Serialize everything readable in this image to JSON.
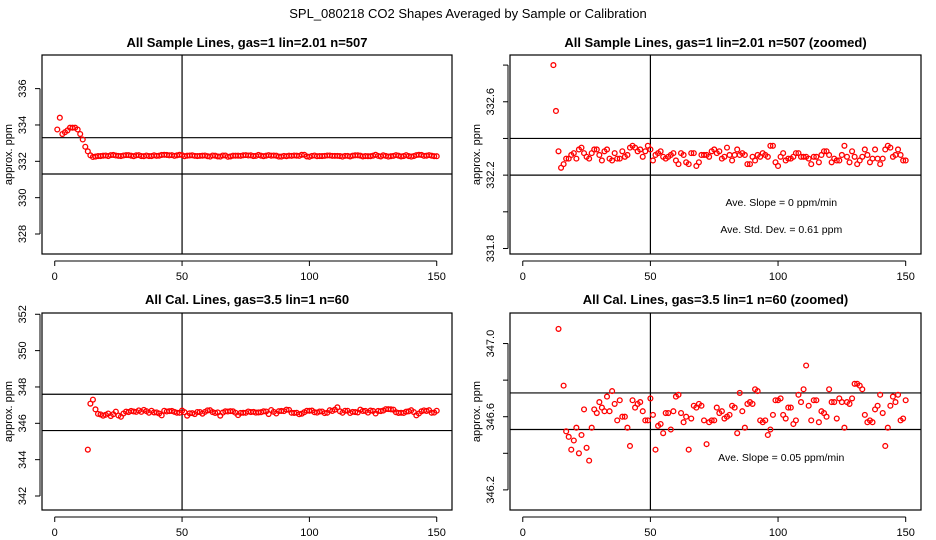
{
  "main_title": "SPL_080218  CO2 Shapes Averaged by Sample or Calibration",
  "colors": {
    "points": "#ff0000",
    "lines": "#000000"
  },
  "datasets": {
    "sample": {
      "x_start": 1,
      "values": [
        333.75,
        334.4,
        333.5,
        333.6,
        333.7,
        333.85,
        333.85,
        333.85,
        333.75,
        333.5,
        333.2,
        332.8,
        332.55,
        332.33,
        332.24,
        332.26,
        332.29,
        332.29,
        332.31,
        332.32,
        332.29,
        332.34,
        332.35,
        332.32,
        332.3,
        332.29,
        332.32,
        332.34,
        332.34,
        332.31,
        332.28,
        332.33,
        332.34,
        332.29,
        332.28,
        332.32,
        332.29,
        332.29,
        332.33,
        332.3,
        332.31,
        332.35,
        332.36,
        332.35,
        332.33,
        332.34,
        332.3,
        332.33,
        332.36,
        332.34,
        332.28,
        332.31,
        332.32,
        332.33,
        332.3,
        332.29,
        332.3,
        332.31,
        332.32,
        332.28,
        332.26,
        332.32,
        332.31,
        332.27,
        332.26,
        332.32,
        332.32,
        332.25,
        332.27,
        332.31,
        332.31,
        332.31,
        332.3,
        332.33,
        332.34,
        332.32,
        332.33,
        332.29,
        332.3,
        332.35,
        332.31,
        332.28,
        332.31,
        332.34,
        332.31,
        332.32,
        332.31,
        332.26,
        332.26,
        332.3,
        332.28,
        332.31,
        332.3,
        332.32,
        332.31,
        332.3,
        332.36,
        332.36,
        332.27,
        332.25,
        332.3,
        332.32,
        332.28,
        332.29,
        332.29,
        332.3,
        332.32,
        332.32,
        332.3,
        332.3,
        332.3,
        332.29,
        332.26,
        332.3,
        332.3,
        332.27,
        332.31,
        332.33,
        332.33,
        332.31,
        332.27,
        332.29,
        332.28,
        332.28,
        332.31,
        332.36,
        332.3,
        332.27,
        332.33,
        332.3,
        332.26,
        332.28,
        332.3,
        332.34,
        332.31,
        332.27,
        332.29,
        332.34,
        332.29,
        332.26,
        332.29,
        332.34,
        332.36,
        332.35,
        332.3,
        332.31,
        332.34,
        332.31,
        332.28,
        332.28
      ]
    },
    "calibration": {
      "x_start": 13,
      "values": [
        344.55,
        347.08,
        347.3,
        346.77,
        346.52,
        346.49,
        346.42,
        346.47,
        346.54,
        346.4,
        346.5,
        346.64,
        346.43,
        346.36,
        346.54,
        346.64,
        346.62,
        346.68,
        346.65,
        346.63,
        346.71,
        346.63,
        346.74,
        346.67,
        346.58,
        346.69,
        346.6,
        346.6,
        346.54,
        346.44,
        346.69,
        346.65,
        346.67,
        346.68,
        346.63,
        346.58,
        346.58,
        346.7,
        346.61,
        346.42,
        346.55,
        346.56,
        346.51,
        346.62,
        346.62,
        346.53,
        346.63,
        346.71,
        346.72,
        346.62,
        346.57,
        346.6,
        346.42,
        346.59,
        346.66,
        346.65,
        346.67,
        346.66,
        346.58,
        346.45,
        346.57,
        346.58,
        346.58,
        346.65,
        346.62,
        346.63,
        346.59,
        346.6,
        346.61,
        346.66,
        346.65,
        346.51,
        346.73,
        346.63,
        346.54,
        346.67,
        346.68,
        346.67,
        346.75,
        346.74,
        346.58,
        346.57,
        346.58,
        346.5,
        346.53,
        346.61,
        346.69,
        346.69,
        346.7,
        346.61,
        346.59,
        346.65,
        346.65,
        346.56,
        346.58,
        346.72,
        346.68,
        346.75,
        346.88,
        346.66,
        346.58,
        346.69,
        346.69,
        346.57,
        346.63,
        346.62,
        346.6,
        346.75,
        346.68,
        346.68,
        346.59,
        346.7,
        346.68,
        346.54,
        346.68,
        346.67,
        346.7,
        346.78,
        346.78,
        346.77,
        346.75,
        346.61,
        346.57,
        346.58,
        346.57,
        346.64,
        346.66,
        346.72,
        346.62,
        346.44,
        346.54,
        346.66,
        346.71,
        346.68,
        346.72,
        346.58,
        346.59,
        346.69
      ]
    }
  },
  "chart_data": [
    {
      "type": "scatter",
      "title": "All Sample Lines, gas=1 lin=2.01 n=507",
      "dataset": "sample",
      "xlabel": "",
      "ylabel": "approx. ppm",
      "xlim": [
        -5,
        156
      ],
      "ylim": [
        326.9,
        337.85
      ],
      "x_ticks": [
        0,
        50,
        100,
        150
      ],
      "x_tick_labels": [
        "0",
        "50",
        "100",
        "150"
      ],
      "y_ticks": [
        328,
        330,
        332,
        334,
        336
      ],
      "y_tick_labels": [
        "328",
        "330",
        "332",
        "334",
        "336"
      ],
      "hlines": [
        333.3,
        331.3
      ],
      "vlines": [
        50
      ],
      "annotations": []
    },
    {
      "type": "scatter",
      "title": "All Sample Lines, gas=1 lin=2.01 n=507 (zoomed)",
      "dataset": "sample",
      "xlabel": "",
      "ylabel": "approx. ppm",
      "xlim": [
        -5,
        156
      ],
      "ylim": [
        331.77,
        332.855
      ],
      "x_ticks": [
        0,
        50,
        100,
        150
      ],
      "x_tick_labels": [
        "0",
        "50",
        "100",
        "150"
      ],
      "y_ticks": [
        331.8,
        332.0,
        332.2,
        332.4,
        332.6,
        332.8
      ],
      "y_tick_labels": [
        "331.8",
        "",
        "332.2",
        "",
        "332.6",
        ""
      ],
      "hlines": [
        332.4,
        332.2
      ],
      "vlines": [
        50
      ],
      "annotations": [
        "Ave. Slope =  0  ppm/min",
        "Ave. Std. Dev. =  0.61  ppm"
      ]
    },
    {
      "type": "scatter",
      "title": "All Cal. Lines, gas=3.5 lin=1 n=60",
      "dataset": "calibration",
      "xlabel": "",
      "ylabel": "approx. ppm",
      "xlim": [
        -5,
        156
      ],
      "ylim": [
        341.23,
        352.07
      ],
      "x_ticks": [
        0,
        50,
        100,
        150
      ],
      "x_tick_labels": [
        "0",
        "50",
        "100",
        "150"
      ],
      "y_ticks": [
        342,
        344,
        346,
        348,
        350,
        352
      ],
      "y_tick_labels": [
        "342",
        "344",
        "346",
        "348",
        "350",
        "352"
      ],
      "hlines": [
        347.6,
        345.6
      ],
      "vlines": [
        50
      ],
      "annotations": []
    },
    {
      "type": "scatter",
      "title": "All Cal. Lines, gas=3.5 lin=1 n=60 (zoomed)",
      "dataset": "calibration",
      "xlabel": "",
      "ylabel": "approx. ppm",
      "xlim": [
        -5,
        156
      ],
      "ylim": [
        346.09,
        347.167
      ],
      "x_ticks": [
        0,
        50,
        100,
        150
      ],
      "x_tick_labels": [
        "0",
        "50",
        "100",
        "150"
      ],
      "y_ticks": [
        346.2,
        346.4,
        346.6,
        346.8,
        347.0
      ],
      "y_tick_labels": [
        "346.2",
        "",
        "346.6",
        "",
        "347.0"
      ],
      "hlines": [
        346.73,
        346.53
      ],
      "vlines": [
        50
      ],
      "annotations": [
        "Ave. Slope =  0.05  ppm/min"
      ]
    }
  ]
}
